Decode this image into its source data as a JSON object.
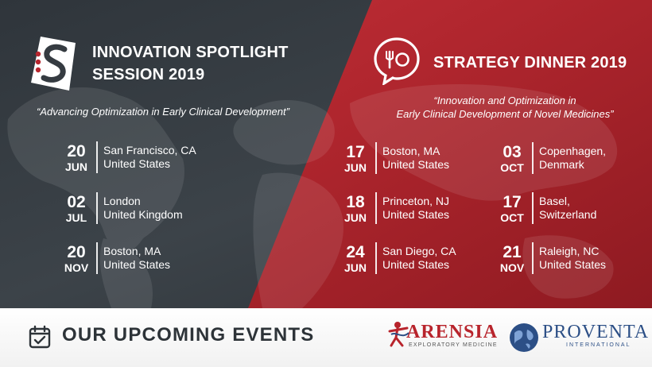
{
  "left_event": {
    "title_line1": "INNOVATION SPOTLIGHT",
    "title_line2": "SESSION 2019",
    "quote": "“Advancing Optimization in Early Clinical Development”",
    "events": [
      {
        "day": "20",
        "month": "JUN",
        "city": "San Francisco, CA",
        "country": "United States"
      },
      {
        "day": "02",
        "month": "JUL",
        "city": "London",
        "country": "United Kingdom"
      },
      {
        "day": "20",
        "month": "NOV",
        "city": "Boston, MA",
        "country": "United States"
      }
    ]
  },
  "right_event": {
    "title": "STRATEGY DINNER 2019",
    "quote_line1": "“Innovation and Optimization in",
    "quote_line2": "Early Clinical Development of Novel Medicines”",
    "events_col1": [
      {
        "day": "17",
        "month": "JUN",
        "city": "Boston, MA",
        "country": "United States"
      },
      {
        "day": "18",
        "month": "JUN",
        "city": "Princeton, NJ",
        "country": "United States"
      },
      {
        "day": "24",
        "month": "JUN",
        "city": "San Diego, CA",
        "country": "United States"
      }
    ],
    "events_col2": [
      {
        "day": "03",
        "month": "OCT",
        "city": "Copenhagen,",
        "country": "Denmark"
      },
      {
        "day": "17",
        "month": "OCT",
        "city": "Basel,",
        "country": "Switzerland"
      },
      {
        "day": "21",
        "month": "NOV",
        "city": "Raleigh, NC",
        "country": "United States"
      }
    ]
  },
  "footer": {
    "heading": "OUR UPCOMING EVENTS",
    "arensia_name": "ARENSIA",
    "arensia_tagline": "EXPLORATORY MEDICINE",
    "proventa_name": "PROVENTA",
    "proventa_tagline": "INTERNATIONAL"
  },
  "colors": {
    "dark_panel": "#353b41",
    "red_panel": "#b8262e",
    "footer_text": "#2d3338",
    "arensia_red": "#b8242c",
    "proventa_blue": "#2c4f86"
  },
  "icons": [
    "spotlight-logo-icon",
    "dinner-logo-icon",
    "calendar-check-icon",
    "arensia-logo-icon",
    "proventa-globe-icon"
  ]
}
